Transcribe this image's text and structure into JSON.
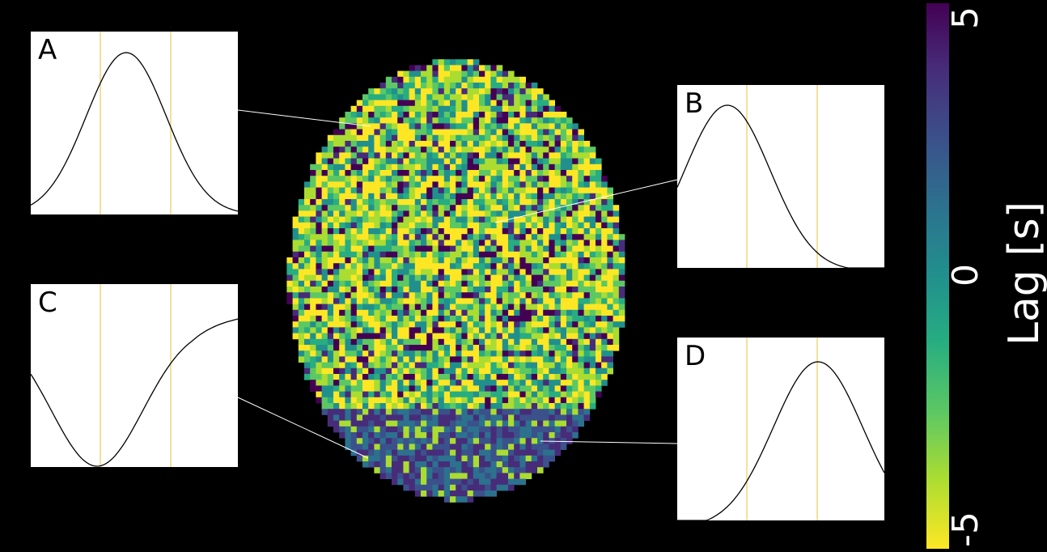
{
  "panels": [
    {
      "label": "A",
      "curve": "peak"
    },
    {
      "label": "B",
      "curve": "early-peak"
    },
    {
      "label": "C",
      "curve": "trough"
    },
    {
      "label": "D",
      "curve": "late-peak"
    }
  ],
  "colorbar": {
    "label": "Lag [s]",
    "ticks": [
      "5",
      "0",
      "-5"
    ],
    "colors": [
      "#440154",
      "#472c7a",
      "#3b518b",
      "#2c718e",
      "#21908d",
      "#27ad81",
      "#5cc863",
      "#aadc32",
      "#fde725"
    ]
  },
  "colors": {
    "background": "#000000",
    "panel_background": "#ffffff",
    "curve": "#000000",
    "guide_lines": "#e6c23a",
    "connector": "#ffffff"
  }
}
